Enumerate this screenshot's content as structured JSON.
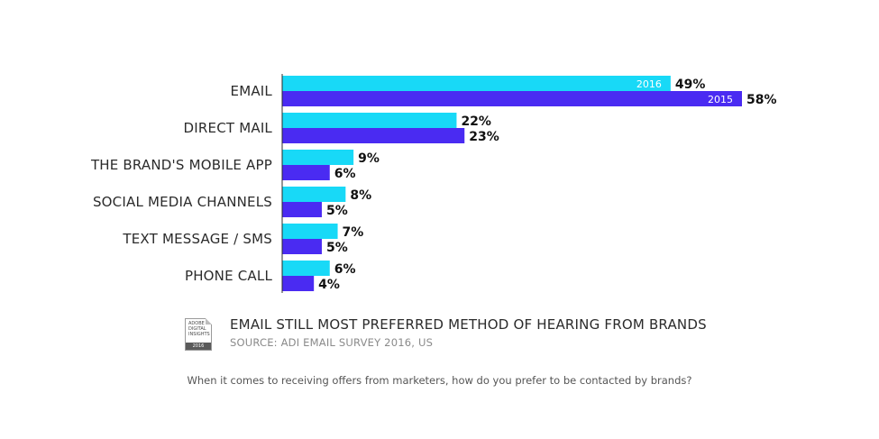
{
  "colors": {
    "series_2016": "#18D9F7",
    "series_2015": "#4A2BF2",
    "axis": "#2b2b2b"
  },
  "chart_data": {
    "type": "bar",
    "orientation": "horizontal",
    "categories": [
      "EMAIL",
      "DIRECT MAIL",
      "THE BRAND'S MOBILE APP",
      "SOCIAL MEDIA CHANNELS",
      "TEXT MESSAGE / SMS",
      "PHONE CALL"
    ],
    "series": [
      {
        "name": "2016",
        "values": [
          49,
          22,
          9,
          8,
          7,
          6
        ],
        "labels": [
          "49%",
          "22%",
          "9%",
          "8%",
          "7%",
          "6%"
        ]
      },
      {
        "name": "2015",
        "values": [
          58,
          23,
          6,
          5,
          5,
          4
        ],
        "labels": [
          "58%",
          "23%",
          "6%",
          "5%",
          "5%",
          "4%"
        ]
      }
    ],
    "xlim": [
      0,
      58
    ],
    "grid": false,
    "legend": "inside first bars"
  },
  "caption": {
    "headline": "EMAIL STILL MOST PREFERRED METHOD OF HEARING FROM BRANDS",
    "source": "SOURCE: ADI EMAIL SURVEY 2016, US",
    "badge_lines": [
      "ADOBE",
      "DIGITAL",
      "INSIGHTS"
    ],
    "badge_year": "2016"
  },
  "question": "When it comes to receiving offers from marketers, how do you prefer to be contacted by brands?"
}
